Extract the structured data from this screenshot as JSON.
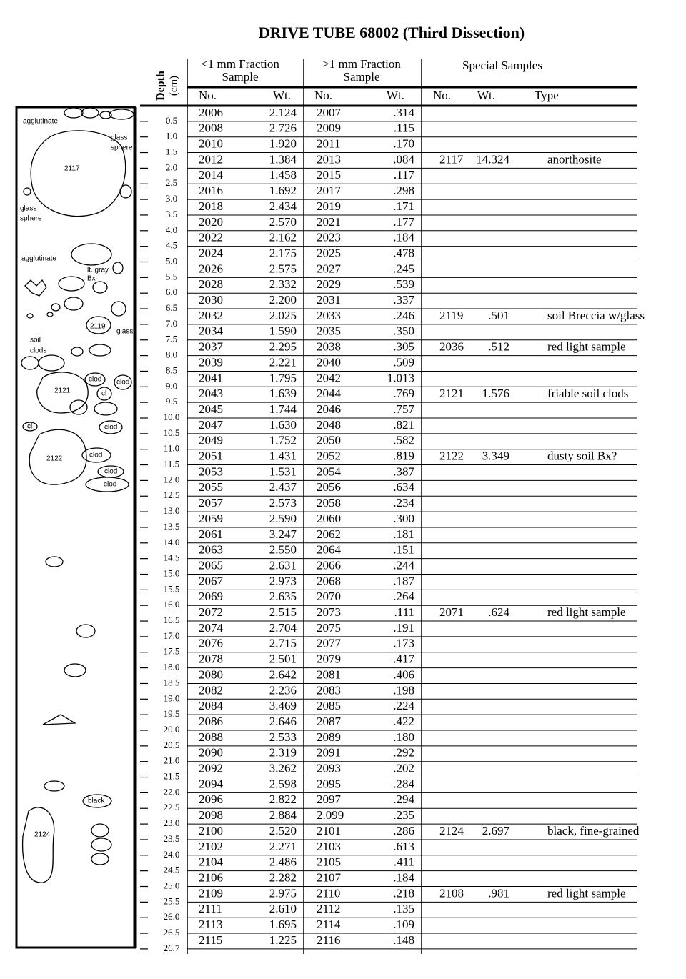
{
  "header": {
    "title": "DRIVE TUBE 68002 (Third Dissection)",
    "depth": "Depth",
    "depth_unit": "(cm)",
    "fine": {
      "title": "<1 mm Fraction",
      "sub": "Sample"
    },
    "coarse": {
      "title": ">1 mm Fraction",
      "sub": "Sample"
    },
    "special": {
      "title": "Special Samples"
    },
    "col_no": "No.",
    "col_wt": "Wt.",
    "col_type": "Type"
  },
  "depths": [
    "0.5",
    "1.0",
    "1.5",
    "2.0",
    "2.5",
    "3.0",
    "3.5",
    "4.0",
    "4.5",
    "5.0",
    "5.5",
    "6.0",
    "6.5",
    "7.0",
    "7.5",
    "8.0",
    "8.5",
    "9.0",
    "9.5",
    "10.0",
    "10.5",
    "11.0",
    "11.5",
    "12.0",
    "12.5",
    "13.0",
    "13.5",
    "14.0",
    "14.5",
    "15.0",
    "15.5",
    "16.0",
    "16.5",
    "17.0",
    "17.5",
    "18.0",
    "18.5",
    "19.0",
    "19.5",
    "20.0",
    "20.5",
    "21.0",
    "21.5",
    "22.0",
    "22.5",
    "23.0",
    "23.5",
    "24.0",
    "24.5",
    "25.0",
    "25.5",
    "26.0",
    "26.5",
    "26.7"
  ],
  "rows": [
    {
      "fine": [
        "2006",
        "2.124"
      ],
      "coarse": [
        "2007",
        ".314"
      ]
    },
    {
      "fine": [
        "2008",
        "2.726"
      ],
      "coarse": [
        "2009",
        ".115"
      ]
    },
    {
      "fine": [
        "2010",
        "1.920"
      ],
      "coarse": [
        "2011",
        ".170"
      ]
    },
    {
      "fine": [
        "2012",
        "1.384"
      ],
      "coarse": [
        "2013",
        ".084"
      ],
      "special": [
        "2117",
        "14.324",
        "anorthosite"
      ]
    },
    {
      "fine": [
        "2014",
        "1.458"
      ],
      "coarse": [
        "2015",
        ".117"
      ]
    },
    {
      "fine": [
        "2016",
        "1.692"
      ],
      "coarse": [
        "2017",
        ".298"
      ]
    },
    {
      "fine": [
        "2018",
        "2.434"
      ],
      "coarse": [
        "2019",
        ".171"
      ]
    },
    {
      "fine": [
        "2020",
        "2.570"
      ],
      "coarse": [
        "2021",
        ".177"
      ]
    },
    {
      "fine": [
        "2022",
        "2.162"
      ],
      "coarse": [
        "2023",
        ".184"
      ]
    },
    {
      "fine": [
        "2024",
        "2.175"
      ],
      "coarse": [
        "2025",
        ".478"
      ]
    },
    {
      "fine": [
        "2026",
        "2.575"
      ],
      "coarse": [
        "2027",
        ".245"
      ]
    },
    {
      "fine": [
        "2028",
        "2.332"
      ],
      "coarse": [
        "2029",
        ".539"
      ]
    },
    {
      "fine": [
        "2030",
        "2.200"
      ],
      "coarse": [
        "2031",
        ".337"
      ]
    },
    {
      "fine": [
        "2032",
        "2.025"
      ],
      "coarse": [
        "2033",
        ".246"
      ],
      "special": [
        "2119",
        ".501",
        "soil Breccia w/glass"
      ]
    },
    {
      "fine": [
        "2034",
        "1.590"
      ],
      "coarse": [
        "2035",
        ".350"
      ]
    },
    {
      "fine": [
        "2037",
        "2.295"
      ],
      "coarse": [
        "2038",
        ".305"
      ],
      "special": [
        "2036",
        ".512",
        "red light sample"
      ]
    },
    {
      "fine": [
        "2039",
        "2.221"
      ],
      "coarse": [
        "2040",
        ".509"
      ]
    },
    {
      "fine": [
        "2041",
        "1.795"
      ],
      "coarse": [
        "2042",
        "1.013"
      ]
    },
    {
      "fine": [
        "2043",
        "1.639"
      ],
      "coarse": [
        "2044",
        ".769"
      ],
      "special": [
        "2121",
        "1.576",
        "friable soil clods"
      ]
    },
    {
      "fine": [
        "2045",
        "1.744"
      ],
      "coarse": [
        "2046",
        ".757"
      ]
    },
    {
      "fine": [
        "2047",
        "1.630"
      ],
      "coarse": [
        "2048",
        ".821"
      ]
    },
    {
      "fine": [
        "2049",
        "1.752"
      ],
      "coarse": [
        "2050",
        ".582"
      ]
    },
    {
      "fine": [
        "2051",
        "1.431"
      ],
      "coarse": [
        "2052",
        ".819"
      ],
      "special": [
        "2122",
        "3.349",
        "dusty soil Bx?"
      ]
    },
    {
      "fine": [
        "2053",
        "1.531"
      ],
      "coarse": [
        "2054",
        ".387"
      ]
    },
    {
      "fine": [
        "2055",
        "2.437"
      ],
      "coarse": [
        "2056",
        ".634"
      ]
    },
    {
      "fine": [
        "2057",
        "2.573"
      ],
      "coarse": [
        "2058",
        ".234"
      ]
    },
    {
      "fine": [
        "2059",
        "2.590"
      ],
      "coarse": [
        "2060",
        ".300"
      ]
    },
    {
      "fine": [
        "2061",
        "3.247"
      ],
      "coarse": [
        "2062",
        ".181"
      ]
    },
    {
      "fine": [
        "2063",
        "2.550"
      ],
      "coarse": [
        "2064",
        ".151"
      ]
    },
    {
      "fine": [
        "2065",
        "2.631"
      ],
      "coarse": [
        "2066",
        ".244"
      ]
    },
    {
      "fine": [
        "2067",
        "2.973"
      ],
      "coarse": [
        "2068",
        ".187"
      ]
    },
    {
      "fine": [
        "2069",
        "2.635"
      ],
      "coarse": [
        "2070",
        ".264"
      ]
    },
    {
      "fine": [
        "2072",
        "2.515"
      ],
      "coarse": [
        "2073",
        ".111"
      ],
      "special": [
        "2071",
        ".624",
        "red light sample"
      ]
    },
    {
      "fine": [
        "2074",
        "2.704"
      ],
      "coarse": [
        "2075",
        ".191"
      ]
    },
    {
      "fine": [
        "2076",
        "2.715"
      ],
      "coarse": [
        "2077",
        ".173"
      ]
    },
    {
      "fine": [
        "2078",
        "2.501"
      ],
      "coarse": [
        "2079",
        ".417"
      ]
    },
    {
      "fine": [
        "2080",
        "2.642"
      ],
      "coarse": [
        "2081",
        ".406"
      ]
    },
    {
      "fine": [
        "2082",
        "2.236"
      ],
      "coarse": [
        "2083",
        ".198"
      ]
    },
    {
      "fine": [
        "2084",
        "3.469"
      ],
      "coarse": [
        "2085",
        ".224"
      ]
    },
    {
      "fine": [
        "2086",
        "2.646"
      ],
      "coarse": [
        "2087",
        ".422"
      ]
    },
    {
      "fine": [
        "2088",
        "2.533"
      ],
      "coarse": [
        "2089",
        ".180"
      ]
    },
    {
      "fine": [
        "2090",
        "2.319"
      ],
      "coarse": [
        "2091",
        ".292"
      ]
    },
    {
      "fine": [
        "2092",
        "3.262"
      ],
      "coarse": [
        "2093",
        ".202"
      ]
    },
    {
      "fine": [
        "2094",
        "2.598"
      ],
      "coarse": [
        "2095",
        ".284"
      ]
    },
    {
      "fine": [
        "2096",
        "2.822"
      ],
      "coarse": [
        "2097",
        ".294"
      ]
    },
    {
      "fine": [
        "2098",
        "2.884"
      ],
      "coarse": [
        "2.099",
        ".235"
      ]
    },
    {
      "fine": [
        "2100",
        "2.520"
      ],
      "coarse": [
        "2101",
        ".286"
      ],
      "special": [
        "2124",
        "2.697",
        "black, fine-grained"
      ]
    },
    {
      "fine": [
        "2102",
        "2.271"
      ],
      "coarse": [
        "2103",
        ".613"
      ]
    },
    {
      "fine": [
        "2104",
        "2.486"
      ],
      "coarse": [
        "2105",
        ".411"
      ]
    },
    {
      "fine": [
        "2106",
        "2.282"
      ],
      "coarse": [
        "2107",
        ".184"
      ]
    },
    {
      "fine": [
        "2109",
        "2.975"
      ],
      "coarse": [
        "2110",
        ".218"
      ],
      "special": [
        "2108",
        ".981",
        "red light sample"
      ]
    },
    {
      "fine": [
        "2111",
        "2.610"
      ],
      "coarse": [
        "2112",
        ".135"
      ]
    },
    {
      "fine": [
        "2113",
        "1.695"
      ],
      "coarse": [
        "2114",
        ".109"
      ]
    },
    {
      "fine": [
        "2115",
        "1.225"
      ],
      "coarse": [
        "2116",
        ".148"
      ]
    }
  ],
  "diagram": {
    "labels": [
      "agglutinate",
      "glass",
      "sphere",
      "2117",
      "glass",
      "sphere",
      "agglutinate",
      "lt. gray",
      "Bx",
      "2119",
      "glass",
      "soil",
      "clods",
      "2121",
      "clod",
      "clod",
      "cl",
      "cl",
      "clod",
      "2122",
      "clod",
      "clod",
      "clod",
      "black",
      "2124"
    ]
  }
}
